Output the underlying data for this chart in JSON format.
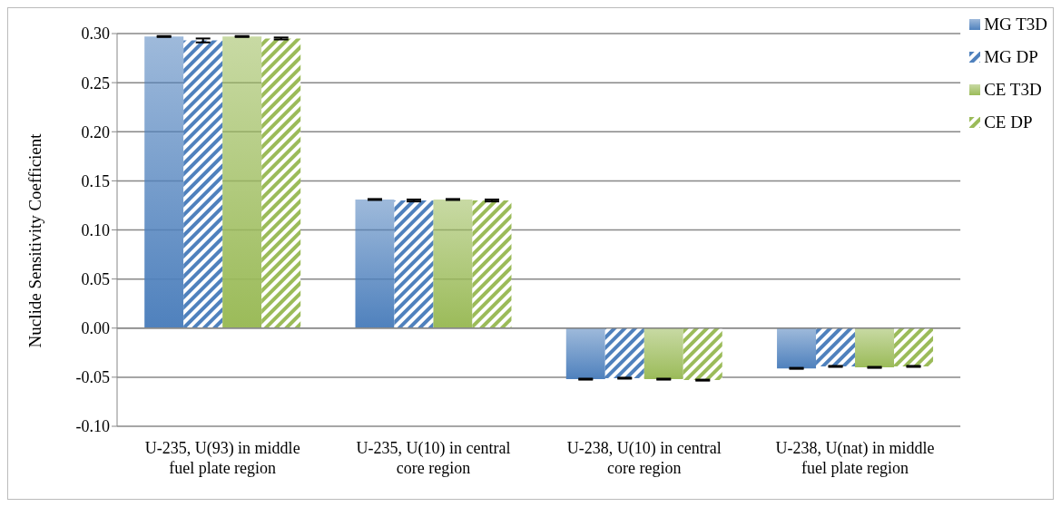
{
  "chart_data": {
    "type": "bar",
    "ylabel": "Nuclide Sensitivity Coefficient",
    "categories": [
      "U-235, U(93) in middle fuel plate region",
      "U-235, U(10) in central core region",
      "U-238, U(10) in central core region",
      "U-238, U(nat) in middle fuel plate region"
    ],
    "series": [
      {
        "name": "MG T3D",
        "color": "#4f81bd",
        "values": [
          0.297,
          0.131,
          -0.052,
          -0.041
        ],
        "errors": [
          0.0005,
          0.0005,
          0.0005,
          0.0005
        ]
      },
      {
        "name": "MG DP",
        "color": "#4f81bd",
        "values": [
          0.293,
          0.13,
          -0.051,
          -0.039
        ],
        "errors": [
          0.002,
          0.001,
          0.0005,
          0.0005
        ]
      },
      {
        "name": "CE T3D",
        "color": "#9bbb59",
        "values": [
          0.297,
          0.131,
          -0.052,
          -0.04
        ],
        "errors": [
          0.0005,
          0.0005,
          0.0005,
          0.0005
        ]
      },
      {
        "name": "CE DP",
        "color": "#9bbb59",
        "values": [
          0.295,
          0.13,
          -0.053,
          -0.039
        ],
        "errors": [
          0.001,
          0.001,
          0.0005,
          0.0005
        ]
      }
    ],
    "ylim": [
      -0.1,
      0.3
    ],
    "yticks": [
      {
        "value": -0.1,
        "label": "-0.10"
      },
      {
        "value": -0.05,
        "label": "-0.05"
      },
      {
        "value": 0,
        "label": "0.00"
      },
      {
        "value": 0.05,
        "label": "0.05"
      },
      {
        "value": 0.1,
        "label": "0.10"
      },
      {
        "value": 0.15,
        "label": "0.15"
      },
      {
        "value": 0.2,
        "label": "0.20"
      },
      {
        "value": 0.25,
        "label": "0.25"
      },
      {
        "value": 0.3,
        "label": "0.30"
      }
    ],
    "grid": "y",
    "legend": "top right"
  }
}
